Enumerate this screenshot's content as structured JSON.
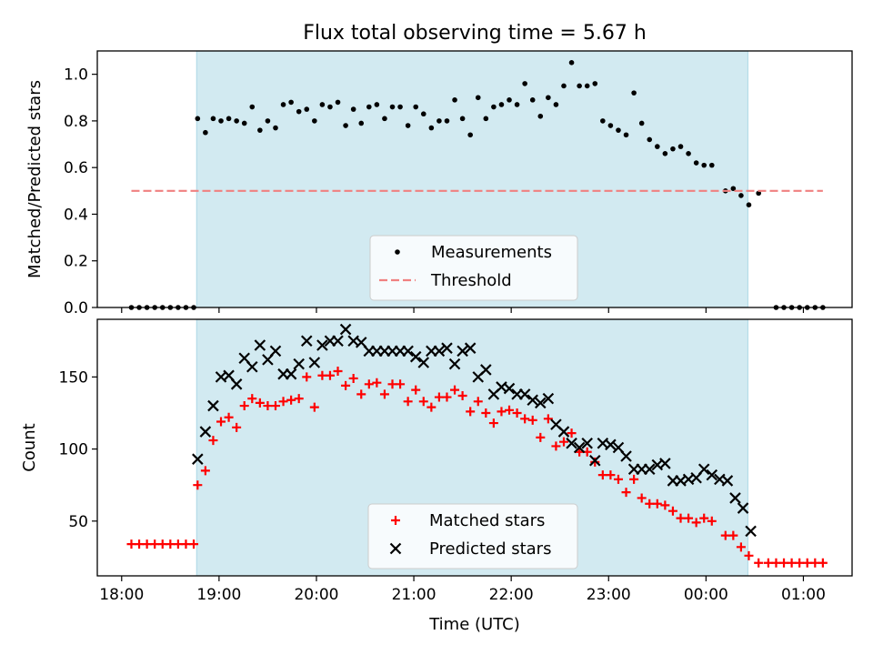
{
  "chart_data": [
    {
      "type": "scatter",
      "title": "Flux total observing time = 5.67 h",
      "xlabel": "",
      "ylabel": "Matched/Predicted stars",
      "ylim": [
        0,
        1.1
      ],
      "yticks": [
        "0.0",
        "0.2",
        "0.4",
        "0.6",
        "0.8",
        "1.0"
      ],
      "x_unit": "hours since 18:00 UTC",
      "xlim": [
        -0.25,
        7.5
      ],
      "observing_window": [
        0.77,
        6.43
      ],
      "highlight_color": "#add8e6",
      "legend": {
        "position": "lower center",
        "entries": [
          "Measurements",
          "Threshold"
        ]
      },
      "series": [
        {
          "name": "Measurements",
          "marker": "dot",
          "color": "#000000",
          "points": [
            [
              0.1,
              0.0
            ],
            [
              0.18,
              0.0
            ],
            [
              0.26,
              0.0
            ],
            [
              0.34,
              0.0
            ],
            [
              0.42,
              0.0
            ],
            [
              0.5,
              0.0
            ],
            [
              0.58,
              0.0
            ],
            [
              0.66,
              0.0
            ],
            [
              0.74,
              0.0
            ],
            [
              0.78,
              0.81
            ],
            [
              0.86,
              0.75
            ],
            [
              0.94,
              0.81
            ],
            [
              1.02,
              0.8
            ],
            [
              1.1,
              0.81
            ],
            [
              1.18,
              0.8
            ],
            [
              1.26,
              0.79
            ],
            [
              1.34,
              0.86
            ],
            [
              1.42,
              0.76
            ],
            [
              1.5,
              0.8
            ],
            [
              1.58,
              0.77
            ],
            [
              1.66,
              0.87
            ],
            [
              1.74,
              0.88
            ],
            [
              1.82,
              0.84
            ],
            [
              1.9,
              0.85
            ],
            [
              1.98,
              0.8
            ],
            [
              2.06,
              0.87
            ],
            [
              2.14,
              0.86
            ],
            [
              2.22,
              0.88
            ],
            [
              2.3,
              0.78
            ],
            [
              2.38,
              0.85
            ],
            [
              2.46,
              0.79
            ],
            [
              2.54,
              0.86
            ],
            [
              2.62,
              0.87
            ],
            [
              2.7,
              0.81
            ],
            [
              2.78,
              0.86
            ],
            [
              2.86,
              0.86
            ],
            [
              2.94,
              0.78
            ],
            [
              3.02,
              0.86
            ],
            [
              3.1,
              0.83
            ],
            [
              3.18,
              0.77
            ],
            [
              3.26,
              0.8
            ],
            [
              3.34,
              0.8
            ],
            [
              3.42,
              0.89
            ],
            [
              3.5,
              0.81
            ],
            [
              3.58,
              0.74
            ],
            [
              3.66,
              0.9
            ],
            [
              3.74,
              0.81
            ],
            [
              3.82,
              0.86
            ],
            [
              3.9,
              0.87
            ],
            [
              3.98,
              0.89
            ],
            [
              4.06,
              0.87
            ],
            [
              4.14,
              0.96
            ],
            [
              4.22,
              0.89
            ],
            [
              4.3,
              0.82
            ],
            [
              4.38,
              0.9
            ],
            [
              4.46,
              0.87
            ],
            [
              4.54,
              0.95
            ],
            [
              4.62,
              1.05
            ],
            [
              4.7,
              0.95
            ],
            [
              4.78,
              0.95
            ],
            [
              4.86,
              0.96
            ],
            [
              4.94,
              0.8
            ],
            [
              5.02,
              0.78
            ],
            [
              5.1,
              0.76
            ],
            [
              5.18,
              0.74
            ],
            [
              5.26,
              0.92
            ],
            [
              5.34,
              0.79
            ],
            [
              5.42,
              0.72
            ],
            [
              5.5,
              0.69
            ],
            [
              5.58,
              0.66
            ],
            [
              5.66,
              0.68
            ],
            [
              5.74,
              0.69
            ],
            [
              5.82,
              0.66
            ],
            [
              5.9,
              0.62
            ],
            [
              5.98,
              0.61
            ],
            [
              6.06,
              0.61
            ],
            [
              6.2,
              0.5
            ],
            [
              6.28,
              0.51
            ],
            [
              6.36,
              0.48
            ],
            [
              6.44,
              0.44
            ],
            [
              6.54,
              0.49
            ],
            [
              6.72,
              0.0
            ],
            [
              6.8,
              0.0
            ],
            [
              6.88,
              0.0
            ],
            [
              6.96,
              0.0
            ],
            [
              7.04,
              0.0
            ],
            [
              7.12,
              0.0
            ],
            [
              7.2,
              0.0
            ]
          ]
        },
        {
          "name": "Threshold",
          "style": "dashed",
          "color": "#f08080",
          "points": [
            [
              0.1,
              0.5
            ],
            [
              7.2,
              0.5
            ]
          ]
        }
      ]
    },
    {
      "type": "scatter",
      "title": "",
      "xlabel": "Time (UTC)",
      "ylabel": "Count",
      "ylim": [
        12,
        190
      ],
      "yticks": [
        "50",
        "100",
        "150"
      ],
      "x_unit": "hours since 18:00 UTC",
      "xlim": [
        -0.25,
        7.5
      ],
      "xticks": [
        "18:00",
        "19:00",
        "20:00",
        "21:00",
        "22:00",
        "23:00",
        "00:00",
        "01:00"
      ],
      "observing_window": [
        0.77,
        6.43
      ],
      "highlight_color": "#add8e6",
      "legend": {
        "position": "lower center",
        "entries": [
          "Matched stars",
          "Predicted stars"
        ]
      },
      "series": [
        {
          "name": "Matched stars",
          "marker": "plus",
          "color": "#ff0000",
          "points": [
            [
              0.1,
              34
            ],
            [
              0.18,
              34
            ],
            [
              0.26,
              34
            ],
            [
              0.34,
              34
            ],
            [
              0.42,
              34
            ],
            [
              0.5,
              34
            ],
            [
              0.58,
              34
            ],
            [
              0.66,
              34
            ],
            [
              0.74,
              34
            ],
            [
              0.78,
              75
            ],
            [
              0.86,
              85
            ],
            [
              0.94,
              106
            ],
            [
              1.02,
              119
            ],
            [
              1.1,
              122
            ],
            [
              1.18,
              115
            ],
            [
              1.26,
              130
            ],
            [
              1.34,
              135
            ],
            [
              1.42,
              132
            ],
            [
              1.5,
              130
            ],
            [
              1.58,
              130
            ],
            [
              1.66,
              133
            ],
            [
              1.74,
              134
            ],
            [
              1.82,
              135
            ],
            [
              1.9,
              150
            ],
            [
              1.98,
              129
            ],
            [
              2.06,
              151
            ],
            [
              2.14,
              151
            ],
            [
              2.22,
              154
            ],
            [
              2.3,
              144
            ],
            [
              2.38,
              149
            ],
            [
              2.46,
              138
            ],
            [
              2.54,
              145
            ],
            [
              2.62,
              146
            ],
            [
              2.7,
              138
            ],
            [
              2.78,
              145
            ],
            [
              2.86,
              145
            ],
            [
              2.94,
              133
            ],
            [
              3.02,
              141
            ],
            [
              3.1,
              133
            ],
            [
              3.18,
              129
            ],
            [
              3.26,
              136
            ],
            [
              3.34,
              136
            ],
            [
              3.42,
              141
            ],
            [
              3.5,
              137
            ],
            [
              3.58,
              126
            ],
            [
              3.66,
              133
            ],
            [
              3.74,
              125
            ],
            [
              3.82,
              118
            ],
            [
              3.9,
              126
            ],
            [
              3.98,
              127
            ],
            [
              4.06,
              125
            ],
            [
              4.14,
              121
            ],
            [
              4.22,
              120
            ],
            [
              4.3,
              108
            ],
            [
              4.38,
              121
            ],
            [
              4.46,
              102
            ],
            [
              4.54,
              105
            ],
            [
              4.62,
              111
            ],
            [
              4.7,
              98
            ],
            [
              4.78,
              98
            ],
            [
              4.86,
              91
            ],
            [
              4.94,
              82
            ],
            [
              5.02,
              82
            ],
            [
              5.1,
              79
            ],
            [
              5.18,
              70
            ],
            [
              5.26,
              79
            ],
            [
              5.34,
              66
            ],
            [
              5.42,
              62
            ],
            [
              5.5,
              62
            ],
            [
              5.58,
              61
            ],
            [
              5.66,
              57
            ],
            [
              5.74,
              52
            ],
            [
              5.82,
              52
            ],
            [
              5.9,
              49
            ],
            [
              5.98,
              52
            ],
            [
              6.06,
              50
            ],
            [
              6.2,
              40
            ],
            [
              6.28,
              40
            ],
            [
              6.36,
              32
            ],
            [
              6.44,
              26
            ],
            [
              6.54,
              21
            ],
            [
              6.64,
              21
            ],
            [
              6.72,
              21
            ],
            [
              6.8,
              21
            ],
            [
              6.88,
              21
            ],
            [
              6.96,
              21
            ],
            [
              7.04,
              21
            ],
            [
              7.12,
              21
            ],
            [
              7.2,
              21
            ]
          ]
        },
        {
          "name": "Predicted stars",
          "marker": "x",
          "color": "#000000",
          "points": [
            [
              0.78,
              93
            ],
            [
              0.86,
              112
            ],
            [
              0.94,
              130
            ],
            [
              1.02,
              150
            ],
            [
              1.1,
              151
            ],
            [
              1.18,
              145
            ],
            [
              1.26,
              163
            ],
            [
              1.34,
              157
            ],
            [
              1.42,
              172
            ],
            [
              1.5,
              162
            ],
            [
              1.58,
              168
            ],
            [
              1.66,
              152
            ],
            [
              1.74,
              152
            ],
            [
              1.82,
              159
            ],
            [
              1.9,
              175
            ],
            [
              1.98,
              160
            ],
            [
              2.06,
              172
            ],
            [
              2.14,
              175
            ],
            [
              2.22,
              175
            ],
            [
              2.3,
              183
            ],
            [
              2.38,
              175
            ],
            [
              2.46,
              174
            ],
            [
              2.54,
              168
            ],
            [
              2.62,
              168
            ],
            [
              2.7,
              168
            ],
            [
              2.78,
              168
            ],
            [
              2.86,
              168
            ],
            [
              2.94,
              168
            ],
            [
              3.02,
              164
            ],
            [
              3.1,
              160
            ],
            [
              3.18,
              168
            ],
            [
              3.26,
              168
            ],
            [
              3.34,
              170
            ],
            [
              3.42,
              159
            ],
            [
              3.5,
              168
            ],
            [
              3.58,
              170
            ],
            [
              3.66,
              150
            ],
            [
              3.74,
              155
            ],
            [
              3.82,
              138
            ],
            [
              3.9,
              143
            ],
            [
              3.98,
              142
            ],
            [
              4.06,
              138
            ],
            [
              4.14,
              138
            ],
            [
              4.22,
              134
            ],
            [
              4.3,
              132
            ],
            [
              4.38,
              135
            ],
            [
              4.46,
              117
            ],
            [
              4.54,
              112
            ],
            [
              4.62,
              104
            ],
            [
              4.7,
              101
            ],
            [
              4.78,
              104
            ],
            [
              4.86,
              92
            ],
            [
              4.94,
              104
            ],
            [
              5.02,
              103
            ],
            [
              5.1,
              101
            ],
            [
              5.18,
              95
            ],
            [
              5.26,
              86
            ],
            [
              5.34,
              86
            ],
            [
              5.42,
              86
            ],
            [
              5.5,
              89
            ],
            [
              5.58,
              90
            ],
            [
              5.66,
              78
            ],
            [
              5.74,
              78
            ],
            [
              5.82,
              79
            ],
            [
              5.9,
              80
            ],
            [
              5.98,
              86
            ],
            [
              6.06,
              82
            ],
            [
              6.14,
              79
            ],
            [
              6.22,
              78
            ],
            [
              6.3,
              66
            ],
            [
              6.38,
              59
            ],
            [
              6.46,
              43
            ]
          ]
        }
      ]
    }
  ]
}
